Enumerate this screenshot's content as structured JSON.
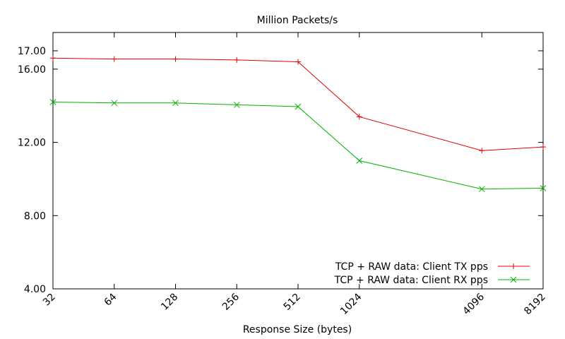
{
  "chart_data": {
    "type": "line",
    "title": "Million Packets/s",
    "xlabel": "Response Size (bytes)",
    "ylabel": "",
    "x_scale": "log2",
    "x": [
      32,
      64,
      128,
      256,
      512,
      1024,
      4096,
      8192
    ],
    "x_tick_labels": [
      "32",
      "64",
      "128",
      "256",
      "512",
      "1024",
      "4096",
      "8192"
    ],
    "xlim": [
      32,
      8192
    ],
    "y_ticks": [
      4.0,
      8.0,
      12.0,
      16.0,
      17.0
    ],
    "y_tick_labels": [
      "4.00",
      "8.00",
      "12.00",
      "16.00",
      "17.00"
    ],
    "ylim": [
      4.0,
      18.0
    ],
    "grid": false,
    "legend_position": "bottom-right",
    "series": [
      {
        "name": "TCP + RAW data: Client TX pps",
        "color": "#e00000",
        "marker": "plus",
        "values": [
          16.6,
          16.55,
          16.55,
          16.5,
          16.4,
          13.4,
          11.55,
          11.75
        ]
      },
      {
        "name": "TCP + RAW data: Client RX pps",
        "color": "#00b000",
        "marker": "cross",
        "values": [
          14.2,
          14.15,
          14.15,
          14.05,
          13.95,
          11.0,
          9.45,
          9.5
        ]
      }
    ]
  }
}
